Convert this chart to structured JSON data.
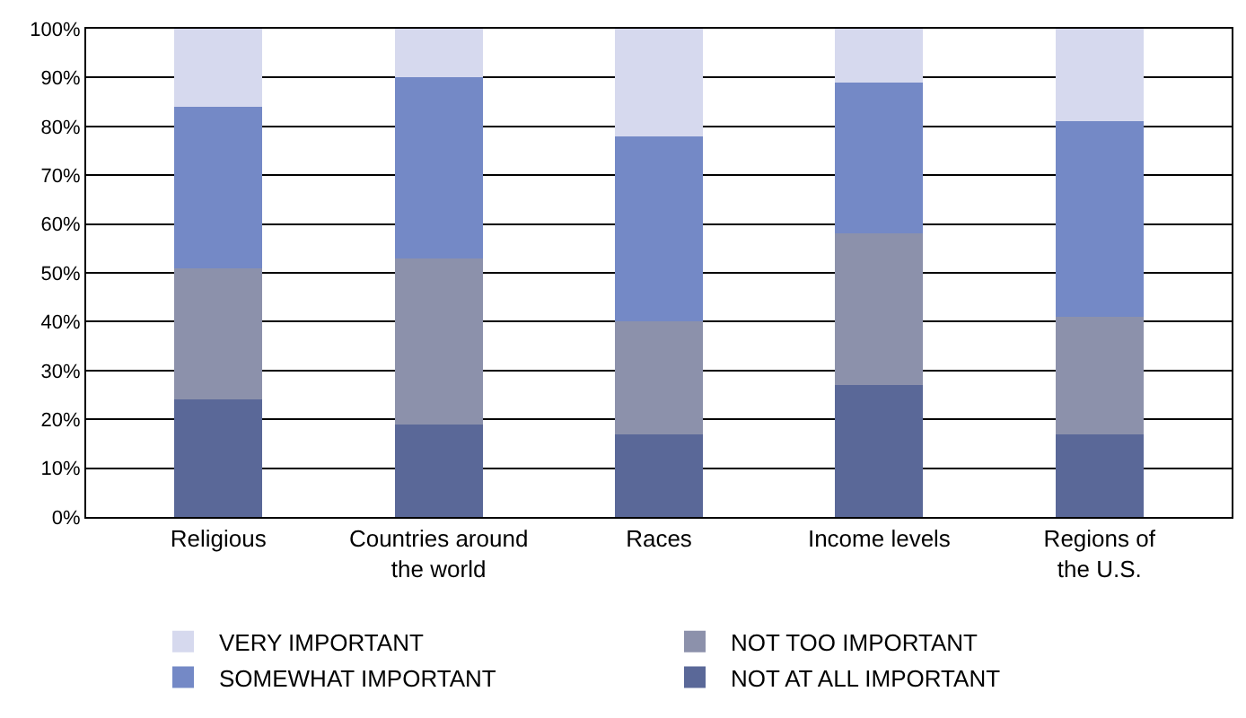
{
  "chart_data": {
    "type": "bar",
    "stacked": true,
    "categories": [
      "Religious",
      "Countries around the world",
      "Races",
      "Income levels",
      "Regions of the U.S."
    ],
    "series": [
      {
        "name": "NOT AT ALL IMPORTANT",
        "color": "#5a6898",
        "values": [
          24,
          19,
          17,
          27,
          17
        ]
      },
      {
        "name": "NOT TOO IMPORTANT",
        "color": "#8c91ab",
        "values": [
          27,
          34,
          23,
          31,
          24
        ]
      },
      {
        "name": "SOMEWHAT IMPORTANT",
        "color": "#7489c6",
        "values": [
          33,
          37,
          38,
          31,
          40
        ]
      },
      {
        "name": "VERY IMPORTANT",
        "color": "#d6d9ee",
        "values": [
          16,
          10,
          22,
          11,
          19
        ]
      }
    ],
    "ylim": [
      0,
      100
    ],
    "yticks": [
      {
        "value": 0,
        "label": "0%"
      },
      {
        "value": 10,
        "label": "10%"
      },
      {
        "value": 20,
        "label": "20%"
      },
      {
        "value": 30,
        "label": "30%"
      },
      {
        "value": 40,
        "label": "40%"
      },
      {
        "value": 50,
        "label": "50%"
      },
      {
        "value": 60,
        "label": "60%"
      },
      {
        "value": 70,
        "label": "70%"
      },
      {
        "value": 80,
        "label": "80%"
      },
      {
        "value": 90,
        "label": "90%"
      },
      {
        "value": 100,
        "label": "100%"
      }
    ],
    "grid": "y",
    "legend": "bottom"
  }
}
